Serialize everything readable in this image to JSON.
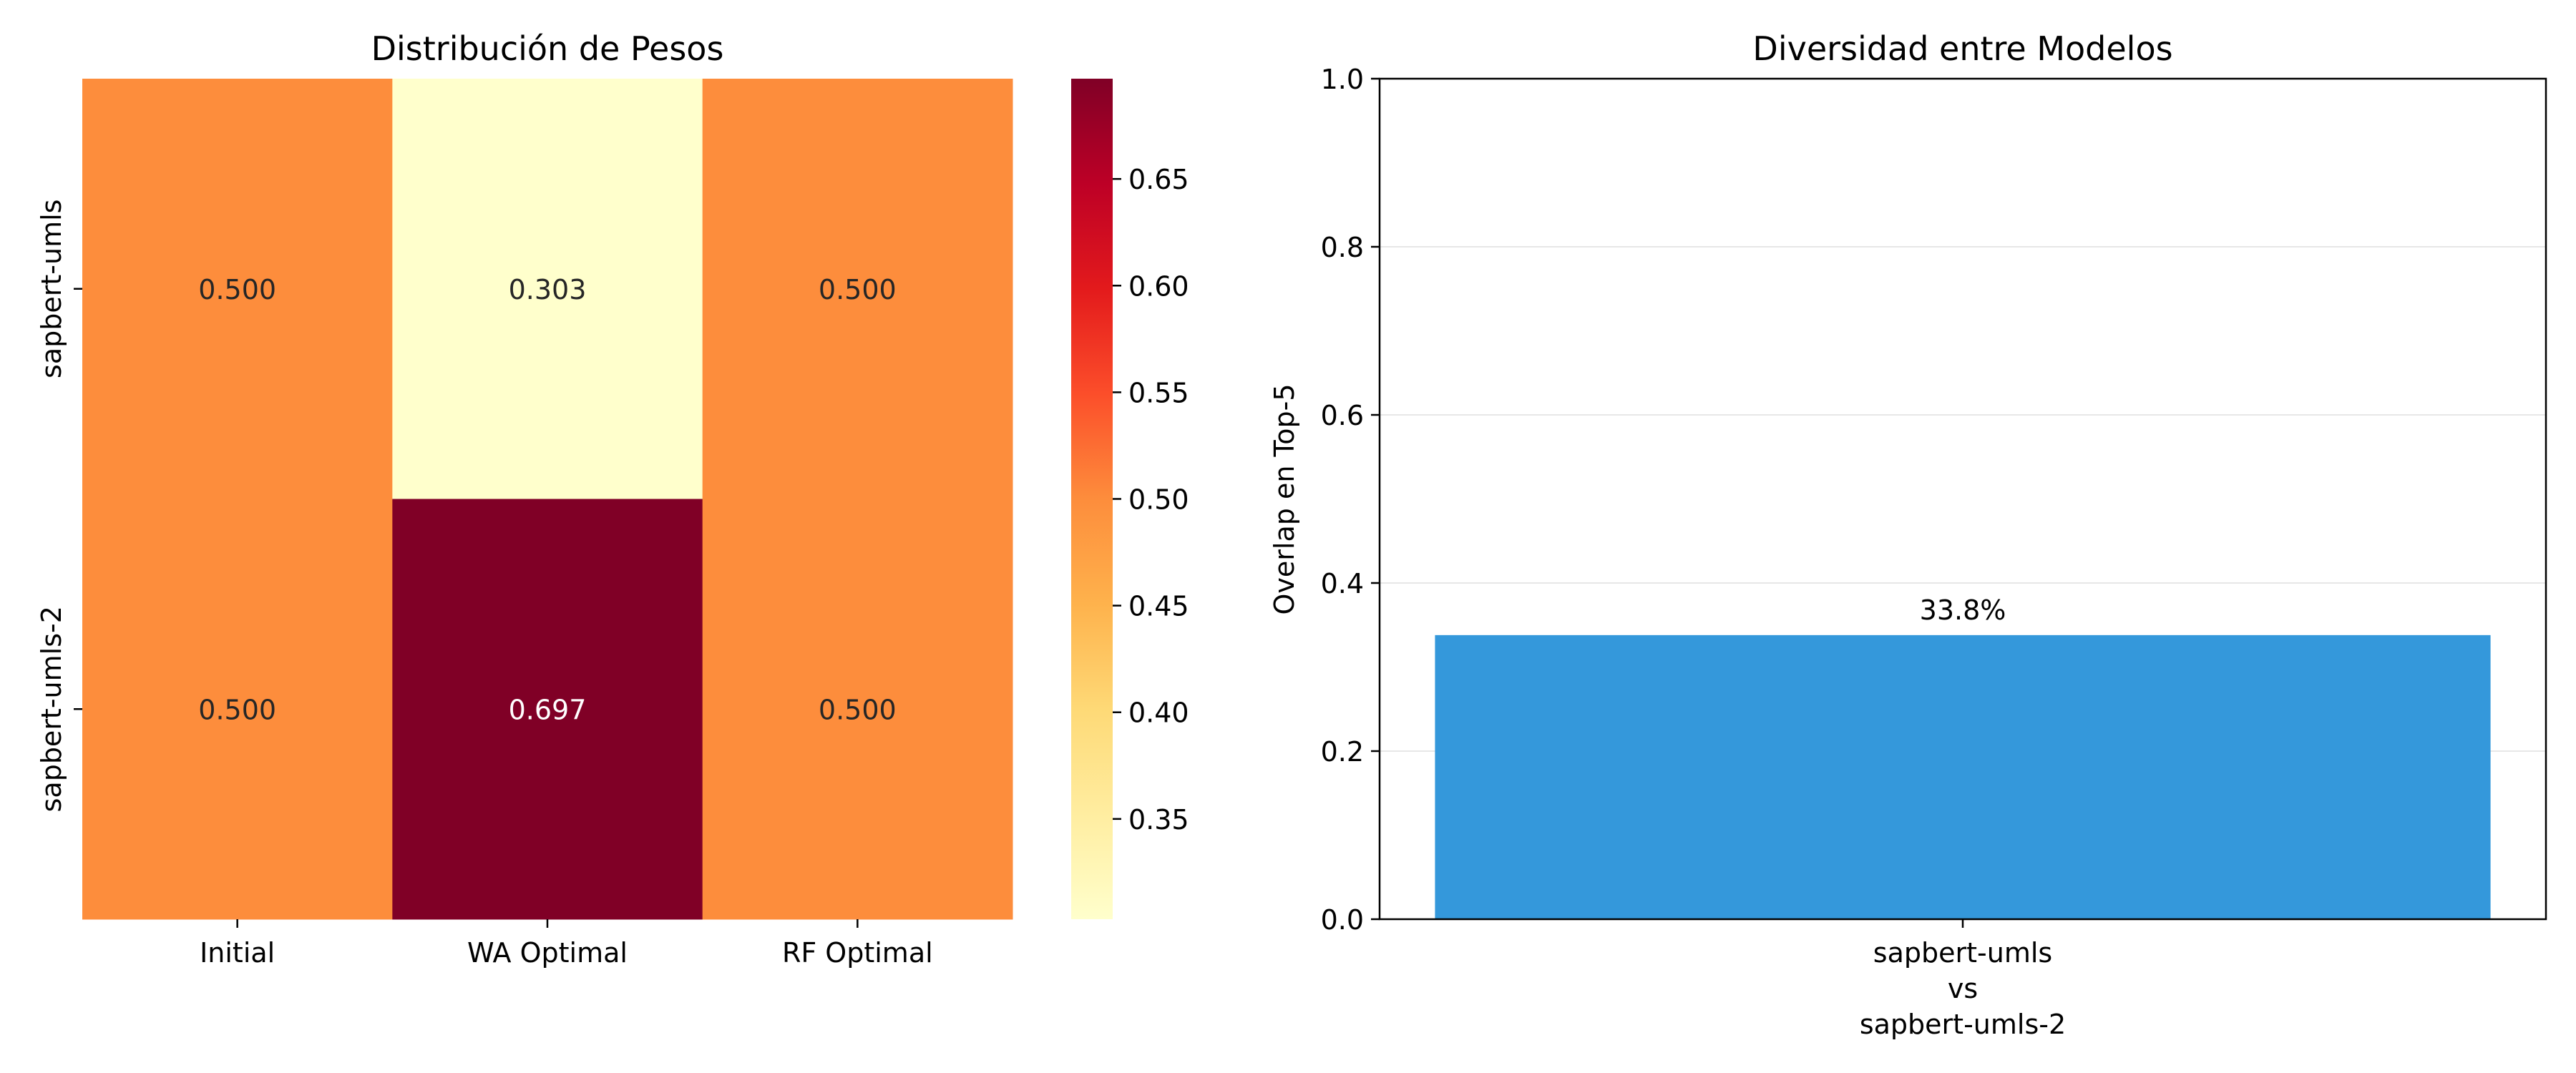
{
  "chart_data": [
    {
      "type": "heatmap",
      "title": "Distribución de Pesos",
      "rows": [
        "sapbert-umls",
        "sapbert-umls-2"
      ],
      "columns": [
        "Initial",
        "WA Optimal",
        "RF Optimal"
      ],
      "values": [
        [
          0.5,
          0.303
        ],
        [
          0.5,
          0.697
        ],
        [
          0.5,
          0.5
        ]
      ],
      "cells": [
        [
          0.5,
          0.303,
          0.5
        ],
        [
          0.5,
          0.697,
          0.5
        ]
      ],
      "cell_labels": [
        [
          "0.500",
          "0.303",
          "0.500"
        ],
        [
          "0.500",
          "0.697",
          "0.500"
        ]
      ],
      "colormap": "YlOrRd",
      "vmin": 0.303,
      "vmax": 0.697,
      "colorbar_ticks": [
        "0.35",
        "0.40",
        "0.45",
        "0.50",
        "0.55",
        "0.60",
        "0.65"
      ]
    },
    {
      "type": "bar",
      "title": "Diversidad entre Modelos",
      "categories": [
        [
          "sapbert-umls",
          "vs",
          "sapbert-umls-2"
        ]
      ],
      "values": [
        0.338
      ],
      "data_labels": [
        "33.8%"
      ],
      "ylabel": "Overlap en Top-5",
      "xlabel": "",
      "ylim": [
        0,
        1.0
      ],
      "yticks": [
        "0.0",
        "0.2",
        "0.4",
        "0.6",
        "0.8",
        "1.0"
      ],
      "grid": true,
      "bar_color": "#3498db"
    }
  ]
}
